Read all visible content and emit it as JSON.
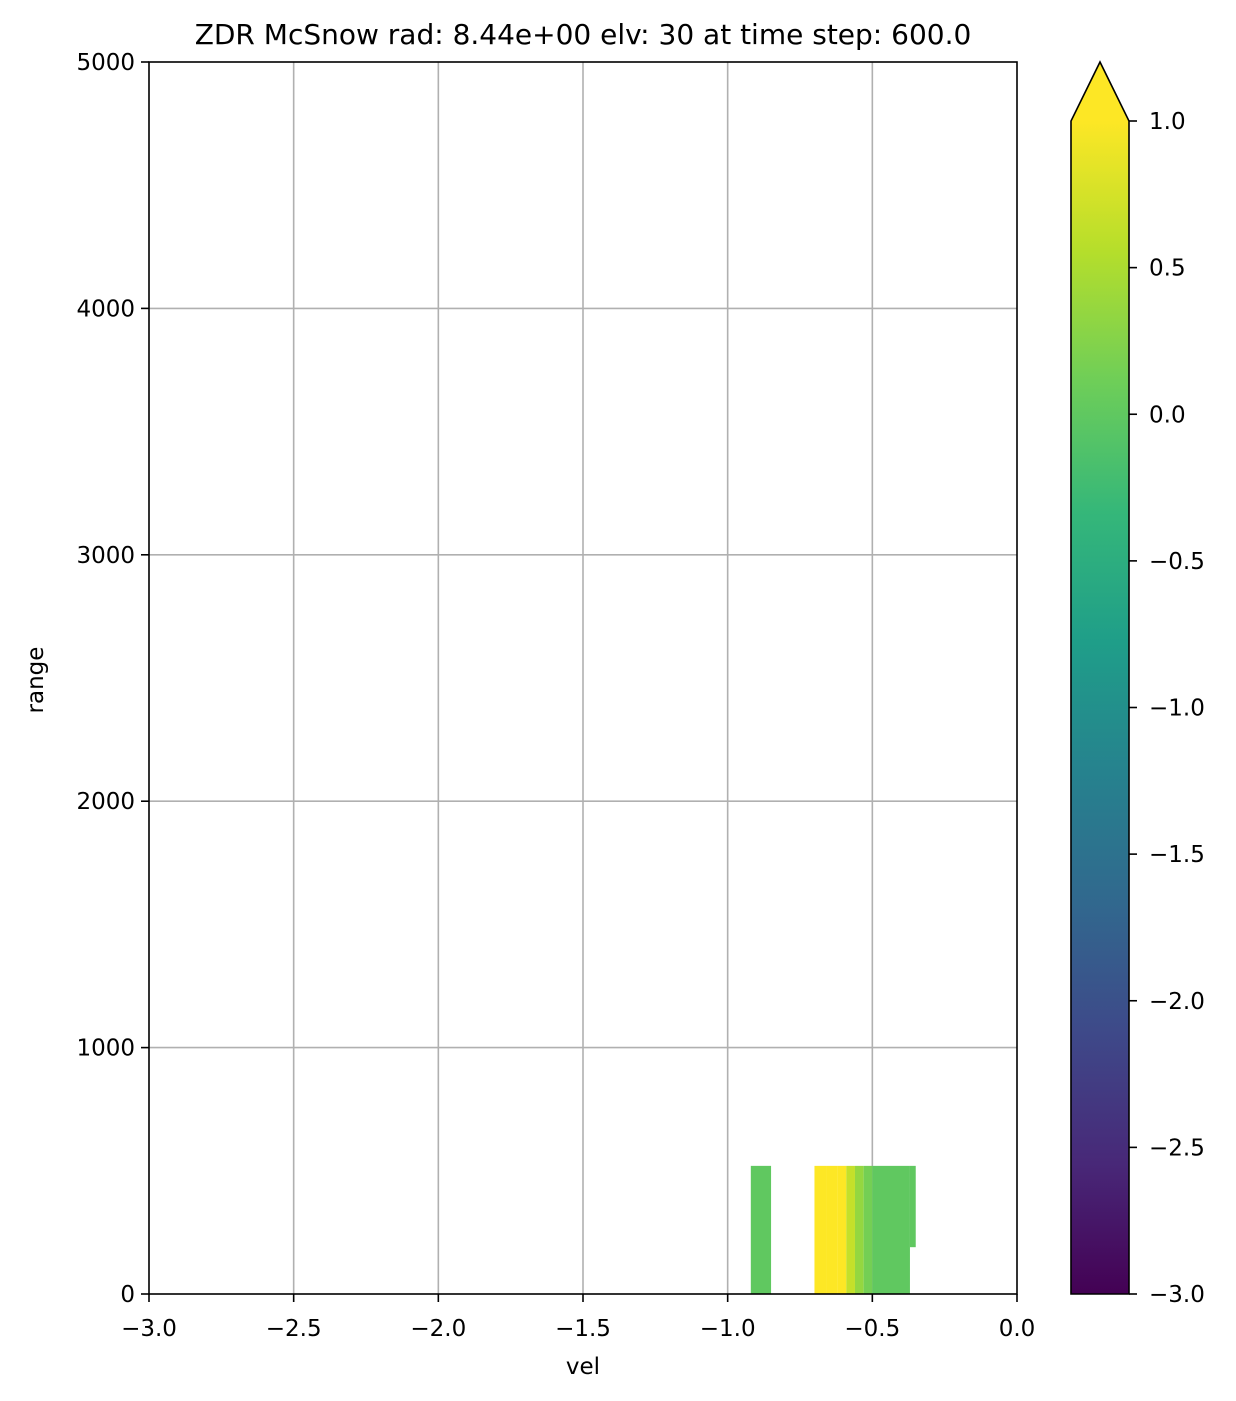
{
  "chart_data": {
    "type": "heatmap",
    "title": "ZDR McSnow rad: 8.44e+00 elv: 30 at time step: 600.0",
    "xlabel": "vel",
    "ylabel": "range",
    "xlim": [
      -3.0,
      0.0
    ],
    "ylim": [
      0,
      5000
    ],
    "x_ticks": [
      -3.0,
      -2.5,
      -2.0,
      -1.5,
      -1.0,
      -0.5,
      0.0
    ],
    "x_tick_labels": [
      "−3.0",
      "−2.5",
      "−2.0",
      "−1.5",
      "−1.0",
      "−0.5",
      "0.0"
    ],
    "y_ticks": [
      0,
      1000,
      2000,
      3000,
      4000,
      5000
    ],
    "y_tick_labels": [
      "0",
      "1000",
      "2000",
      "3000",
      "4000",
      "5000"
    ],
    "grid": true,
    "colormap": "viridis",
    "colormap_stops": [
      "#440154",
      "#482878",
      "#3e4989",
      "#31688e",
      "#26828e",
      "#1f9e89",
      "#35b779",
      "#6ece58",
      "#b5de2b",
      "#fde725"
    ],
    "colorbar": {
      "range": [
        -3.0,
        1.0
      ],
      "extend": "max",
      "ticks": [
        -3.0,
        -2.5,
        -2.0,
        -1.5,
        -1.0,
        -0.5,
        0.0,
        0.5,
        1.0
      ],
      "tick_labels": [
        "−3.0",
        "−2.5",
        "−2.0",
        "−1.5",
        "−1.0",
        "−0.5",
        "0.0",
        "0.5",
        "1.0"
      ]
    },
    "cells": [
      {
        "x0": -0.92,
        "x1": -0.85,
        "y0": 0,
        "y1": 520,
        "value": 0.0
      },
      {
        "x0": -0.7,
        "x1": -0.66,
        "y0": 0,
        "y1": 520,
        "value": 1.1
      },
      {
        "x0": -0.66,
        "x1": -0.62,
        "y0": 0,
        "y1": 520,
        "value": 1.1
      },
      {
        "x0": -0.62,
        "x1": -0.59,
        "y0": 0,
        "y1": 520,
        "value": 1.0
      },
      {
        "x0": -0.59,
        "x1": -0.56,
        "y0": 0,
        "y1": 520,
        "value": 0.65
      },
      {
        "x0": -0.56,
        "x1": -0.53,
        "y0": 0,
        "y1": 520,
        "value": 0.35
      },
      {
        "x0": -0.53,
        "x1": -0.5,
        "y0": 0,
        "y1": 520,
        "value": 0.15
      },
      {
        "x0": -0.5,
        "x1": -0.37,
        "y0": 0,
        "y1": 520,
        "value": 0.0
      },
      {
        "x0": -0.37,
        "x1": -0.35,
        "y0": 190,
        "y1": 520,
        "value": 0.0
      }
    ]
  }
}
